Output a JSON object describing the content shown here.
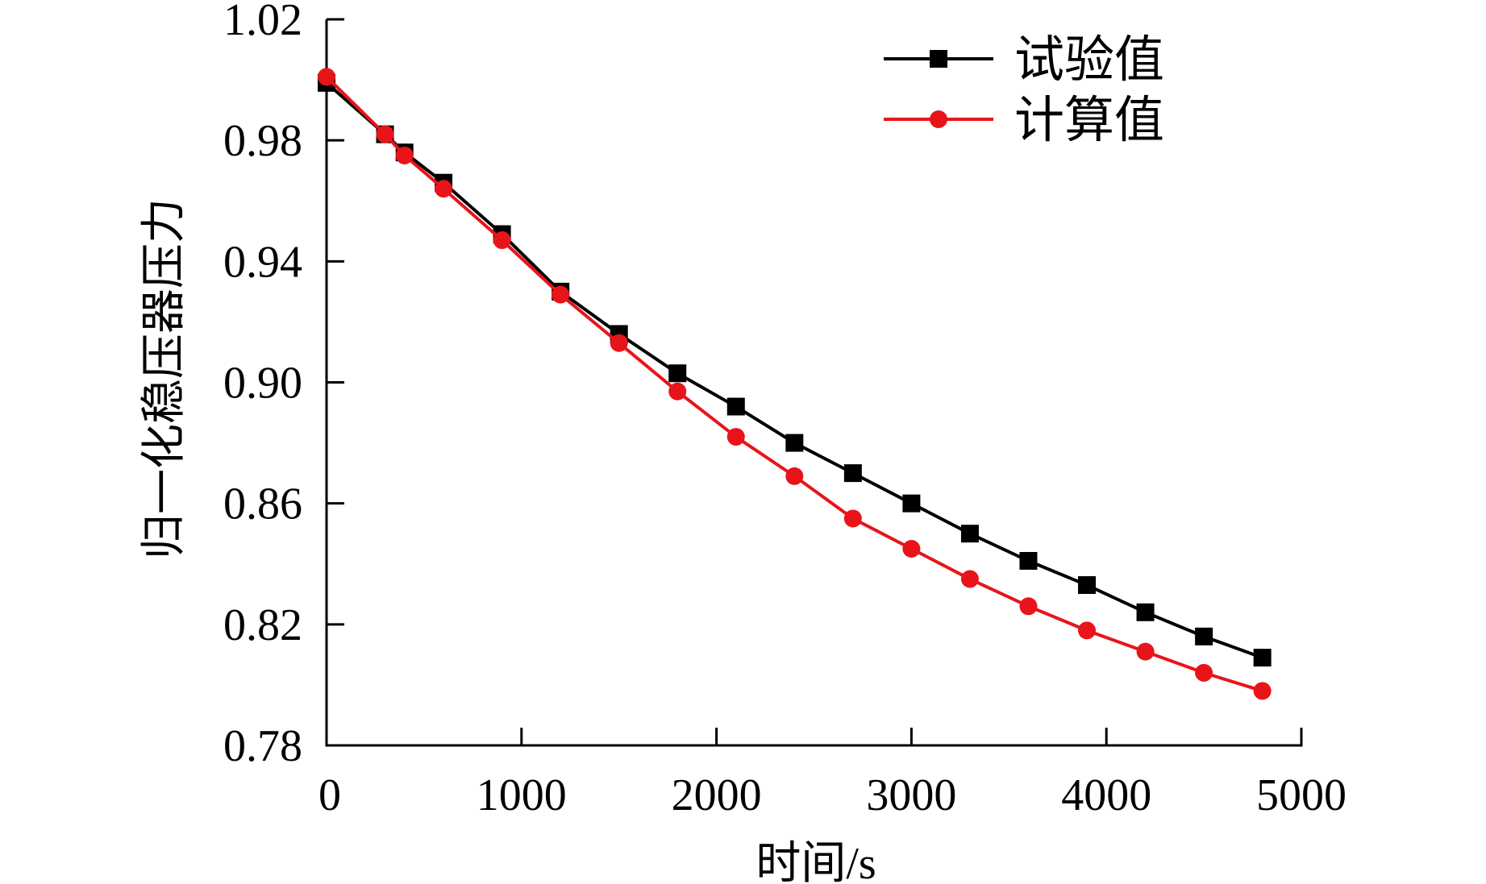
{
  "chart_data": {
    "type": "line",
    "xlabel": "时间/s",
    "ylabel": "归一化稳压器压力",
    "xlim": [
      0,
      5000
    ],
    "ylim": [
      0.78,
      1.02
    ],
    "xticks": [
      "0",
      "1000",
      "2000",
      "3000",
      "4000",
      "5000"
    ],
    "yticks": [
      "0.78",
      "0.82",
      "0.86",
      "0.90",
      "0.94",
      "0.98",
      "1.02"
    ],
    "grid": false,
    "legend_position": "top-right",
    "series": [
      {
        "name": "试验值",
        "color": "#000000",
        "marker": "square",
        "x": [
          0,
          300,
          400,
          600,
          900,
          1200,
          1500,
          1800,
          2100,
          2400,
          2700,
          3000,
          3300,
          3600,
          3900,
          4200,
          4500,
          4800
        ],
        "y": [
          0.999,
          0.982,
          0.976,
          0.966,
          0.949,
          0.93,
          0.916,
          0.903,
          0.892,
          0.88,
          0.87,
          0.86,
          0.85,
          0.841,
          0.833,
          0.824,
          0.816,
          0.809
        ]
      },
      {
        "name": "计算值",
        "color": "#e8141a",
        "marker": "circle",
        "x": [
          0,
          300,
          400,
          600,
          900,
          1200,
          1500,
          1800,
          2100,
          2400,
          2700,
          3000,
          3300,
          3600,
          3900,
          4200,
          4500,
          4800
        ],
        "y": [
          1.001,
          0.982,
          0.975,
          0.964,
          0.947,
          0.929,
          0.913,
          0.897,
          0.882,
          0.869,
          0.855,
          0.845,
          0.835,
          0.826,
          0.818,
          0.811,
          0.804,
          0.798
        ]
      }
    ]
  }
}
